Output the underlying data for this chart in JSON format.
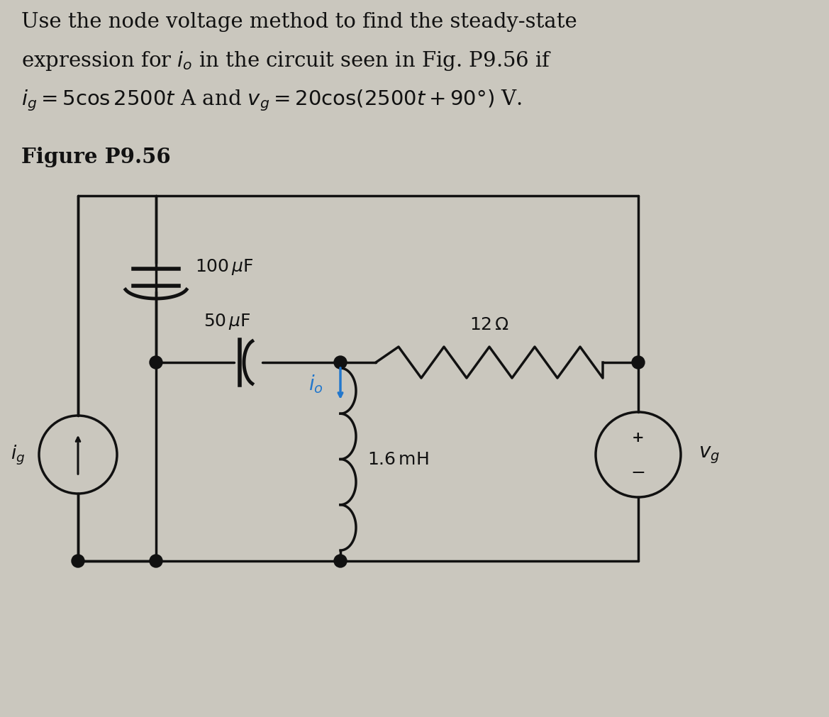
{
  "title_line1": "Use the node voltage method to find the steady-state",
  "title_line2": "expression for $i_o$ in the circuit seen in Fig. P9.56 if",
  "title_line3": "$i_g = 5 \\cos 2500t$ A and $v_g = 20 \\cos(2500t + 90°)$ V.",
  "figure_label": "Figure P9.56",
  "bg_color": "#cac7be",
  "text_color": "#111111",
  "component_color": "#111111",
  "arrow_color": "#2277cc",
  "font_size_title": 21,
  "font_size_label": 19,
  "font_size_component": 17
}
